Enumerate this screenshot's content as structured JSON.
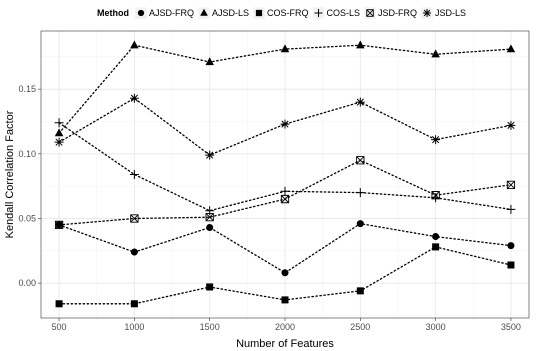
{
  "chart_data": {
    "type": "line",
    "xlabel": "Number of Features",
    "ylabel": "Kendall Correlation Factor",
    "x": [
      500,
      1000,
      1500,
      2000,
      2500,
      3000,
      3500
    ],
    "xlim": [
      380,
      3620
    ],
    "ylim": [
      -0.027,
      0.195
    ],
    "xticks": [
      "500",
      "1000",
      "1500",
      "2000",
      "2500",
      "3000",
      "3500"
    ],
    "yticks": [
      "0.00",
      "0.05",
      "0.10",
      "0.15"
    ],
    "grid": true,
    "legend": {
      "title": "Method",
      "position": "top",
      "labels": [
        "AJSD-FRQ",
        "AJSD-LS",
        "COS-FRQ",
        "COS-LS",
        "JSD-FRQ",
        "JSD-LS"
      ]
    },
    "series": [
      {
        "name": "AJSD-FRQ",
        "marker": "circle",
        "values": [
          0.045,
          0.024,
          0.043,
          0.008,
          0.046,
          0.036,
          0.029
        ]
      },
      {
        "name": "AJSD-LS",
        "marker": "triangle",
        "values": [
          0.116,
          0.184,
          0.171,
          0.181,
          0.184,
          0.177,
          0.181
        ]
      },
      {
        "name": "COS-FRQ",
        "marker": "square",
        "values": [
          -0.016,
          -0.016,
          -0.003,
          -0.013,
          -0.006,
          0.028,
          0.014
        ]
      },
      {
        "name": "COS-LS",
        "marker": "plus",
        "values": [
          0.124,
          0.084,
          0.056,
          0.071,
          0.07,
          0.066,
          0.057
        ]
      },
      {
        "name": "JSD-FRQ",
        "marker": "boxed-x",
        "values": [
          0.045,
          0.05,
          0.051,
          0.065,
          0.095,
          0.068,
          0.076
        ]
      },
      {
        "name": "JSD-LS",
        "marker": "asterisk",
        "values": [
          0.109,
          0.143,
          0.099,
          0.123,
          0.14,
          0.111,
          0.122
        ]
      }
    ]
  }
}
